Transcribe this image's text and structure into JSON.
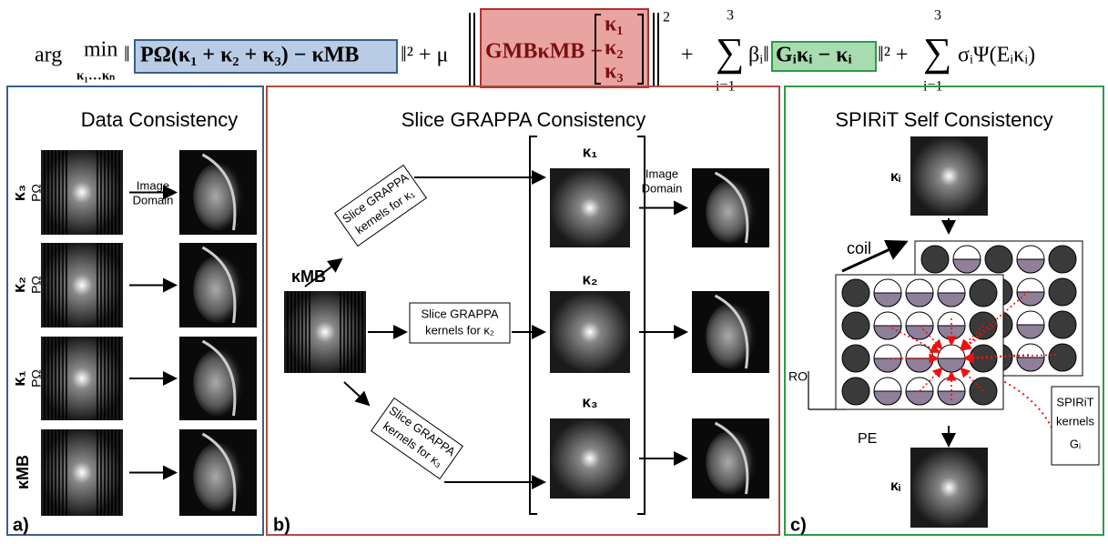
{
  "equation": {
    "arg": "arg",
    "min": "min",
    "sub": "κ₁…κₙ",
    "norm_open": "‖",
    "term1": "PΩ(κ₁ + κ₂ + κ₃) − κMB",
    "after1": "‖² + μ",
    "term2": "GMBκMB −",
    "vec": [
      "κ₁",
      "κ₂",
      "κ₃"
    ],
    "after2": "+",
    "sum_top": "3",
    "sum_bottom": "i=1",
    "beta": "βᵢ‖",
    "term3": "Gᵢκᵢ − κᵢ",
    "after3": "‖² +",
    "sum2_top": "3",
    "sum2_bottom": "i=1",
    "term4": "σᵢΨ(Eᵢκᵢ)",
    "sq": "2"
  },
  "panels": [
    {
      "title": "Data Consistency",
      "label": "a)",
      "rows": [
        {
          "kappa": "κ₃",
          "proj": "PΩ"
        },
        {
          "kappa": "κ₂",
          "proj": "PΩ"
        },
        {
          "kappa": "κ₁",
          "proj": "PΩ"
        },
        {
          "kappa": "κMB"
        }
      ],
      "arrow_label": [
        "Image",
        "Domain"
      ]
    },
    {
      "title": "Slice GRAPPA Consistency",
      "label": "b)",
      "input": "κMB",
      "boxes": [
        [
          "Slice GRAPPA",
          "kernels for κ₁"
        ],
        [
          "Slice GRAPPA",
          "kernels for κ₂"
        ],
        [
          "Slice GRAPPA",
          "kernels for κ₃"
        ]
      ],
      "outputs": [
        "κ₁",
        "κ₂",
        "κ₃"
      ],
      "arrow_label": [
        "Image",
        "Domain"
      ]
    },
    {
      "title": "SPIRiT  Self Consistency",
      "label": "c)",
      "kappa_top": "κᵢ",
      "kappa_bottom": "κᵢ",
      "coil": "coil",
      "ro": "RO",
      "pe": "PE",
      "kernels": [
        "SPIRiT",
        "kernels",
        "Gᵢ"
      ]
    }
  ]
}
